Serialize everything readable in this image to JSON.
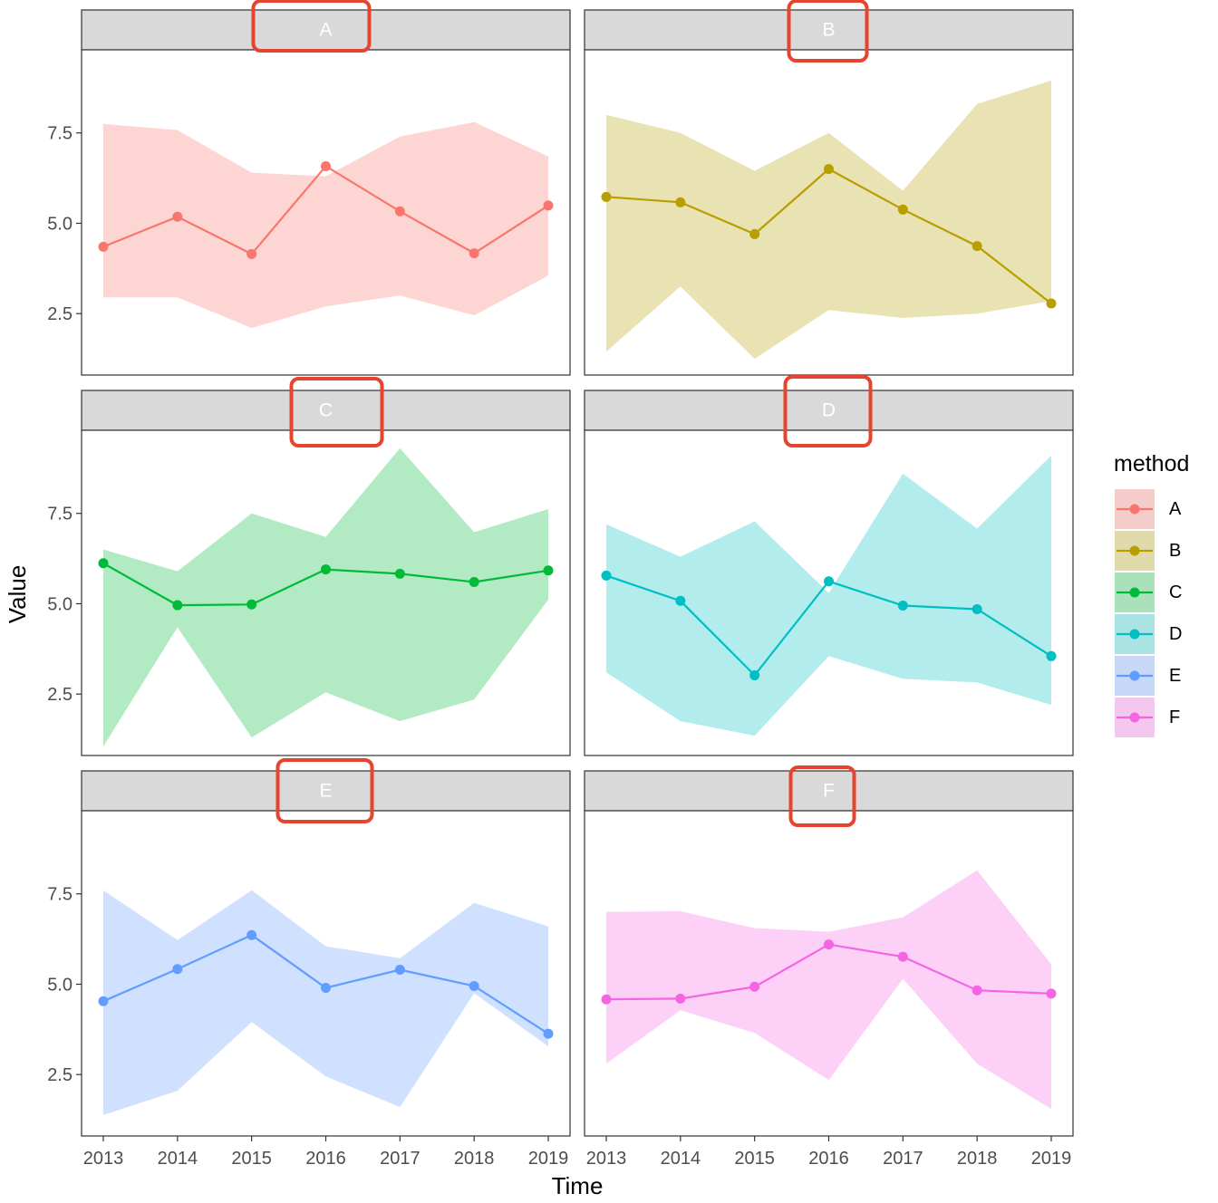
{
  "chart_data": {
    "type": "line",
    "facet_by": "method",
    "xlabel": "Time",
    "ylabel": "Value",
    "x": [
      2013,
      2014,
      2015,
      2016,
      2017,
      2018,
      2019
    ],
    "x_tick_labels": [
      "2013",
      "2014",
      "2015",
      "2016",
      "2017",
      "2018",
      "2019"
    ],
    "y_ticks": [
      2.5,
      5.0,
      7.5
    ],
    "y_tick_labels": [
      "2.5",
      "5.0",
      "7.5"
    ],
    "ylim": [
      0.8,
      9.8
    ],
    "legend": {
      "title": "method",
      "position": "right"
    },
    "highlight": {
      "target": "facet strip labels",
      "color": "#e8432c"
    },
    "series": [
      {
        "name": "A",
        "color": "#F8766D",
        "values": [
          4.35,
          5.18,
          4.15,
          6.58,
          5.33,
          4.17,
          5.49
        ],
        "upper": [
          7.75,
          7.58,
          6.4,
          6.3,
          7.4,
          7.8,
          6.85
        ],
        "lower": [
          2.95,
          2.95,
          2.1,
          2.7,
          3.0,
          2.45,
          3.55
        ]
      },
      {
        "name": "B",
        "color": "#B79F00",
        "values": [
          5.73,
          5.58,
          4.7,
          6.5,
          5.38,
          4.37,
          2.78
        ],
        "upper": [
          8.0,
          7.5,
          6.45,
          7.5,
          5.9,
          8.3,
          8.95
        ],
        "lower": [
          1.45,
          3.25,
          1.25,
          2.6,
          2.38,
          2.5,
          2.85
        ]
      },
      {
        "name": "C",
        "color": "#00BA38",
        "values": [
          6.12,
          4.96,
          4.98,
          5.95,
          5.83,
          5.6,
          5.92
        ],
        "upper": [
          6.5,
          5.9,
          7.5,
          6.85,
          9.3,
          6.98,
          7.62
        ],
        "lower": [
          1.05,
          4.35,
          1.3,
          2.55,
          1.75,
          2.35,
          5.12
        ]
      },
      {
        "name": "D",
        "color": "#00BFC4",
        "values": [
          5.78,
          5.08,
          3.02,
          5.62,
          4.95,
          4.85,
          3.55
        ],
        "upper": [
          7.2,
          6.3,
          7.28,
          5.3,
          8.6,
          7.08,
          9.1
        ],
        "lower": [
          3.1,
          1.75,
          1.35,
          3.55,
          2.92,
          2.82,
          2.2
        ]
      },
      {
        "name": "E",
        "color": "#619CFF",
        "values": [
          4.53,
          5.42,
          6.36,
          4.9,
          5.4,
          4.95,
          3.63
        ],
        "upper": [
          7.6,
          6.22,
          7.6,
          6.05,
          5.72,
          7.25,
          6.6
        ],
        "lower": [
          1.38,
          2.05,
          3.95,
          2.45,
          1.6,
          4.75,
          3.28
        ]
      },
      {
        "name": "F",
        "color": "#F564E3",
        "values": [
          4.58,
          4.6,
          4.93,
          6.1,
          5.76,
          4.83,
          4.74
        ],
        "upper": [
          7.0,
          7.02,
          6.55,
          6.45,
          6.85,
          8.15,
          5.55
        ],
        "lower": [
          2.8,
          4.28,
          3.65,
          2.35,
          5.15,
          2.8,
          1.55
        ]
      }
    ]
  }
}
